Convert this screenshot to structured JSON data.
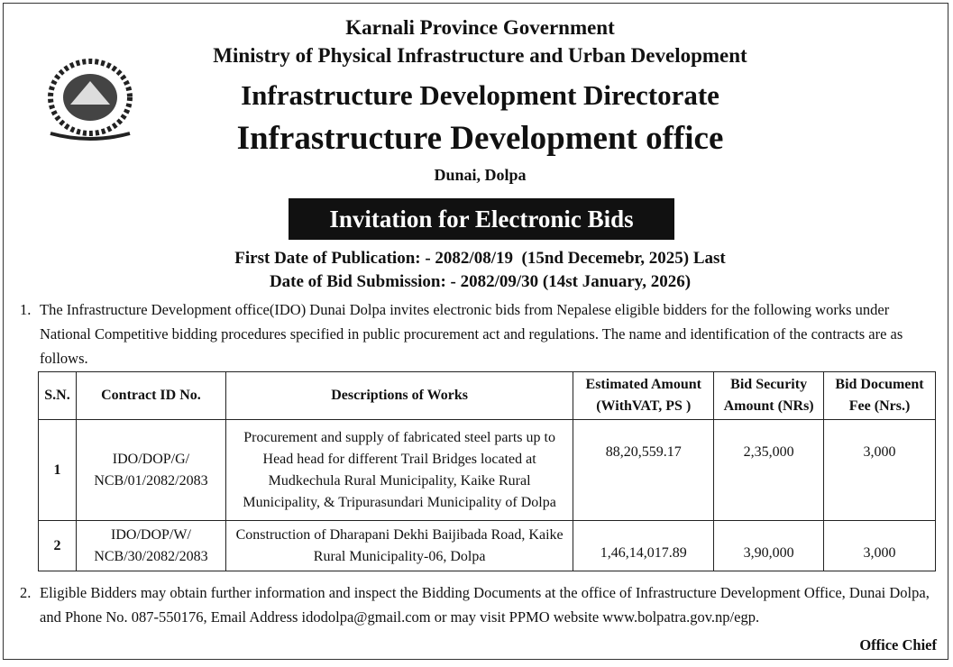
{
  "header": {
    "line1": "Karnali Province Government",
    "line2": "Ministry of Physical Infrastructure and Urban Development",
    "line3": "Infrastructure Development Directorate",
    "line4": "Infrastructure Development office",
    "location": "Dunai, Dolpa"
  },
  "banner": "Invitation for Electronic Bids",
  "dates": [
    "First Date of Publication: - 2082/08/19  (15nd Decemebr, 2025) Last",
    "Date of Bid Submission: - 2082/09/30 (14st January, 2026)"
  ],
  "paragraphs": [
    {
      "number": "1.",
      "text": "The Infrastructure Development office(IDO) Dunai Dolpa invites electronic bids from Nepalese eligible bidders for the following works under National Competitive bidding procedures specified in public procurement act and regulations. The name and identification of the contracts are as follows."
    },
    {
      "number": "2.",
      "text": "Eligible Bidders may obtain further information and inspect the Bidding Documents at the office of Infrastructure Development Office, Dunai Dolpa, and Phone No. 087-550176, Email Address idodolpa@gmail.com or may visit PPMO website www.bolpatra.gov.np/egp."
    }
  ],
  "table": {
    "headers": [
      "S.N.",
      "Contract ID No.",
      "Descriptions of Works",
      "Estimated Amount (WithVAT, PS )",
      "Bid Security Amount (NRs)",
      "Bid Document Fee (Nrs.)"
    ],
    "rows": [
      [
        "1",
        "IDO/DOP/G/ NCB/01/2082/2083",
        "Procurement and supply of fabricated steel parts up to Head head for different Trail Bridges located at Mudkechula Rural Municipality, Kaike Rural Municipality, & Tripurasundari Municipality of Dolpa",
        "88,20,559.17",
        "2,35,000",
        "3,000"
      ],
      [
        "2",
        "IDO/DOP/W/ NCB/30/2082/2083",
        "Construction of Dharapani Dekhi Baijibada Road, Kaike Rural Municipality-06,  Dolpa",
        "1,46,14,017.89",
        "3,90,000",
        "3,000"
      ]
    ]
  },
  "signature": "Office Chief"
}
